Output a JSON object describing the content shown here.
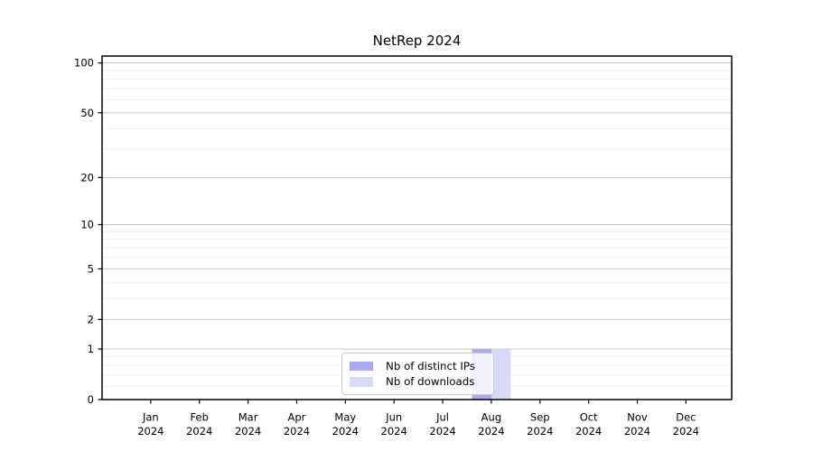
{
  "chart_data": {
    "type": "bar",
    "title": "NetRep 2024",
    "categories": [
      "Jan",
      "Feb",
      "Mar",
      "Apr",
      "May",
      "Jun",
      "Jul",
      "Aug",
      "Sep",
      "Oct",
      "Nov",
      "Dec"
    ],
    "x_tick_year": "2024",
    "series": [
      {
        "name": "Nb of distinct IPs",
        "color": "#aaaaee",
        "values": [
          0,
          0,
          0,
          0,
          0,
          0,
          0,
          1,
          0,
          0,
          0,
          0
        ]
      },
      {
        "name": "Nb of downloads",
        "color": "#d8d8f8",
        "values": [
          0,
          0,
          0,
          0,
          0,
          0,
          0,
          1,
          0,
          0,
          0,
          0
        ]
      }
    ],
    "y_scale": "log1p",
    "ylim": [
      0,
      110
    ],
    "y_major_ticks": [
      0,
      1,
      2,
      5,
      10,
      20,
      50,
      100
    ],
    "y_minor_ticks": [
      0.2,
      0.4,
      0.6,
      0.8,
      3,
      4,
      6,
      7,
      8,
      9,
      30,
      40,
      60,
      70,
      80,
      90
    ],
    "grid": "both",
    "legend_position": "lower center",
    "style": {
      "grid_major_color": "#c6c6c6",
      "grid_minor_color": "#ededed",
      "spine_color": "#000000",
      "tick_label_color": "#000000"
    }
  }
}
